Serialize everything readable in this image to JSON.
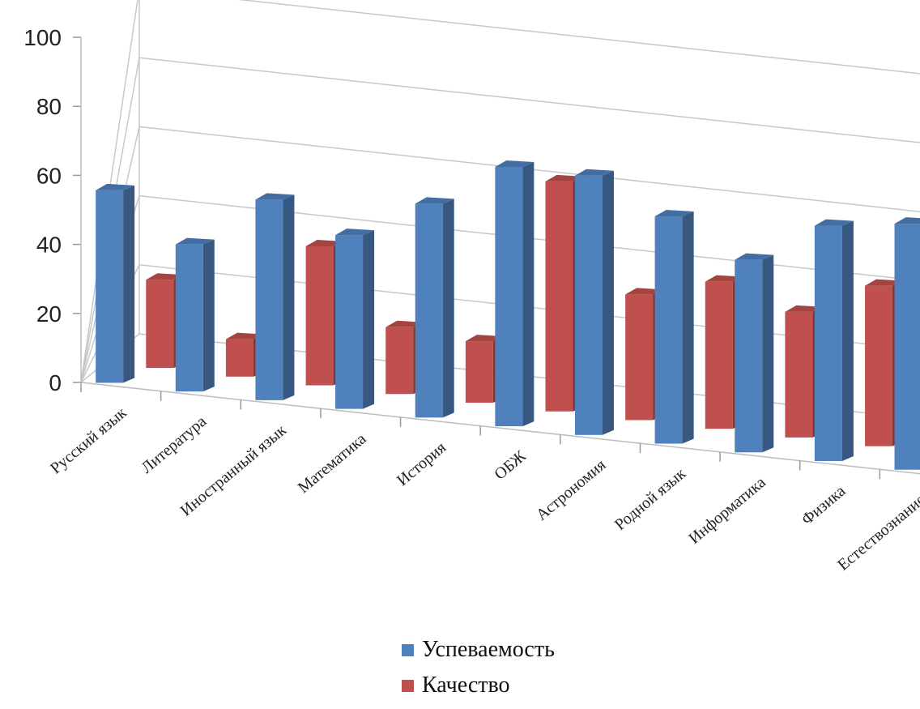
{
  "chart_data": {
    "type": "bar",
    "categories": [
      "Русский язык",
      "Литература",
      "Иностранный язык",
      "Математика",
      "История",
      "ОБЖ",
      "Астрономия",
      "Родной язык",
      "Информатика",
      "Физика",
      "Естествознание"
    ],
    "series": [
      {
        "name": "Успеваемость",
        "color": "#4F81BD",
        "values": [
          72,
          55,
          75,
          65,
          80,
          97,
          97,
          85,
          72,
          88,
          92
        ]
      },
      {
        "name": "Качество",
        "color": "#C0504D",
        "values": [
          33,
          14,
          52,
          25,
          23,
          86,
          47,
          55,
          47,
          60,
          70
        ]
      }
    ],
    "ylim": [
      0,
      100
    ],
    "yticks": [
      0,
      20,
      40,
      60,
      80,
      100
    ],
    "grid": true,
    "legend_position": "bottom",
    "projection": "3d"
  }
}
